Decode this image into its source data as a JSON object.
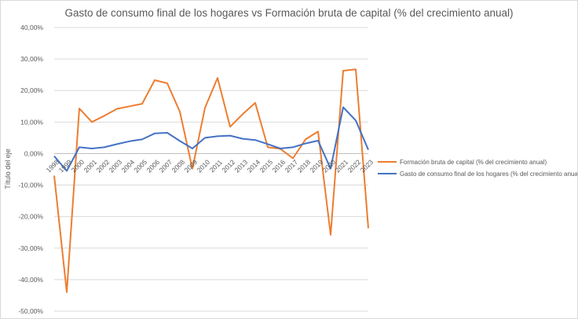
{
  "chart_data": {
    "type": "line",
    "title": "Gasto de consumo final de los hogares vs Formación bruta de capital (% del crecimiento anual)",
    "xlabel": "",
    "ylabel": "Título del eje",
    "ylim": [
      -50,
      40
    ],
    "yticks": [
      "40,00%",
      "30,00%",
      "20,00%",
      "10,00%",
      "0,00%",
      "-10,00%",
      "-20,00%",
      "-30,00%",
      "-40,00%",
      "-50,00%"
    ],
    "grid": true,
    "legend_position": "right",
    "categories": [
      "1998",
      "1999",
      "2000",
      "2001",
      "2002",
      "2003",
      "2004",
      "2005",
      "2006",
      "2007",
      "2008",
      "2009",
      "2010",
      "2011",
      "2012",
      "2013",
      "2014",
      "2015",
      "2016",
      "2017",
      "2018",
      "2019",
      "2020",
      "2021",
      "2022",
      "2023"
    ],
    "series": [
      {
        "name": "Formación bruta de capital (% del crecimiento anual)",
        "color": "#ED7D31",
        "values": [
          -7,
          -44,
          14.3,
          10,
          12,
          14.2,
          15,
          15.8,
          23.3,
          22.3,
          13.3,
          -4.8,
          14.5,
          24,
          8.5,
          12.5,
          16.1,
          2,
          1.5,
          -1.5,
          4.5,
          7,
          -25.8,
          26.3,
          26.7,
          -23.7
        ]
      },
      {
        "name": "Gasto de consumo final de los hogares (% del crecimiento anual)",
        "color": "#4472C4",
        "values": [
          -0.8,
          -5.5,
          2,
          1.6,
          2,
          3,
          3.9,
          4.5,
          6.4,
          6.6,
          4,
          1.6,
          5,
          5.5,
          5.7,
          4.7,
          4.3,
          3,
          1.6,
          2,
          3.2,
          4.1,
          -4.8,
          14.7,
          10.5,
          1.2
        ]
      }
    ]
  }
}
